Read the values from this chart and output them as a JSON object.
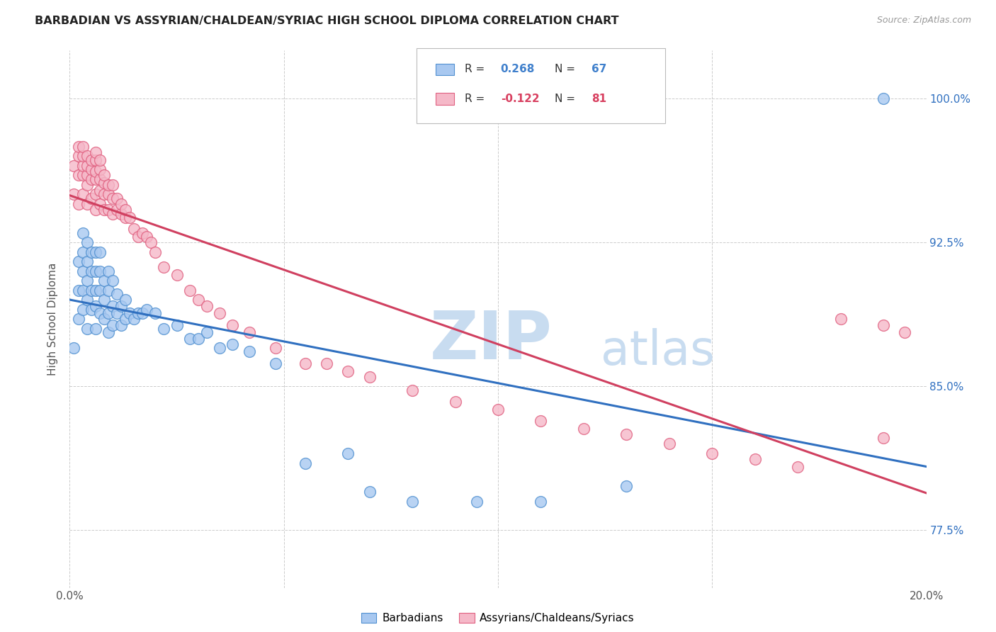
{
  "title": "BARBADIAN VS ASSYRIAN/CHALDEAN/SYRIAC HIGH SCHOOL DIPLOMA CORRELATION CHART",
  "source": "Source: ZipAtlas.com",
  "ylabel": "High School Diploma",
  "xlim": [
    0.0,
    0.2
  ],
  "ylim": [
    0.745,
    1.025
  ],
  "yticks": [
    0.775,
    0.85,
    0.925,
    1.0
  ],
  "yticklabels": [
    "77.5%",
    "85.0%",
    "92.5%",
    "100.0%"
  ],
  "blue_label": "Barbadians",
  "pink_label": "Assyrians/Chaldeans/Syriacs",
  "blue_color": "#A8C8F0",
  "pink_color": "#F5B8C8",
  "blue_edge_color": "#5090D0",
  "pink_edge_color": "#E06080",
  "blue_line_color": "#3070C0",
  "pink_line_color": "#D04060",
  "legend_R_blue": "#4080CC",
  "legend_R_pink": "#D84060",
  "background": "#FFFFFF",
  "grid_color": "#CCCCCC",
  "watermark_zip": "ZIP",
  "watermark_atlas": "atlas",
  "watermark_color_zip": "#C8DCF0",
  "watermark_color_atlas": "#C8DCF0",
  "blue_x": [
    0.001,
    0.002,
    0.002,
    0.002,
    0.003,
    0.003,
    0.003,
    0.003,
    0.003,
    0.004,
    0.004,
    0.004,
    0.004,
    0.004,
    0.005,
    0.005,
    0.005,
    0.005,
    0.006,
    0.006,
    0.006,
    0.006,
    0.006,
    0.007,
    0.007,
    0.007,
    0.007,
    0.008,
    0.008,
    0.008,
    0.009,
    0.009,
    0.009,
    0.009,
    0.01,
    0.01,
    0.01,
    0.011,
    0.011,
    0.012,
    0.012,
    0.013,
    0.013,
    0.014,
    0.015,
    0.016,
    0.017,
    0.018,
    0.02,
    0.022,
    0.025,
    0.028,
    0.03,
    0.032,
    0.035,
    0.038,
    0.042,
    0.048,
    0.055,
    0.065,
    0.07,
    0.08,
    0.095,
    0.11,
    0.13,
    0.19
  ],
  "blue_y": [
    0.87,
    0.885,
    0.9,
    0.915,
    0.89,
    0.9,
    0.91,
    0.92,
    0.93,
    0.88,
    0.895,
    0.905,
    0.915,
    0.925,
    0.89,
    0.9,
    0.91,
    0.92,
    0.88,
    0.892,
    0.9,
    0.91,
    0.92,
    0.888,
    0.9,
    0.91,
    0.92,
    0.885,
    0.895,
    0.905,
    0.878,
    0.888,
    0.9,
    0.91,
    0.882,
    0.892,
    0.905,
    0.888,
    0.898,
    0.882,
    0.892,
    0.885,
    0.895,
    0.888,
    0.885,
    0.888,
    0.888,
    0.89,
    0.888,
    0.88,
    0.882,
    0.875,
    0.875,
    0.878,
    0.87,
    0.872,
    0.868,
    0.862,
    0.81,
    0.815,
    0.795,
    0.79,
    0.79,
    0.79,
    0.798,
    1.0
  ],
  "pink_x": [
    0.001,
    0.001,
    0.002,
    0.002,
    0.002,
    0.002,
    0.003,
    0.003,
    0.003,
    0.003,
    0.003,
    0.004,
    0.004,
    0.004,
    0.004,
    0.004,
    0.005,
    0.005,
    0.005,
    0.005,
    0.006,
    0.006,
    0.006,
    0.006,
    0.006,
    0.006,
    0.007,
    0.007,
    0.007,
    0.007,
    0.007,
    0.008,
    0.008,
    0.008,
    0.008,
    0.009,
    0.009,
    0.009,
    0.01,
    0.01,
    0.01,
    0.011,
    0.011,
    0.012,
    0.012,
    0.013,
    0.013,
    0.014,
    0.015,
    0.016,
    0.017,
    0.018,
    0.019,
    0.02,
    0.022,
    0.025,
    0.028,
    0.03,
    0.032,
    0.035,
    0.038,
    0.042,
    0.048,
    0.055,
    0.06,
    0.065,
    0.07,
    0.08,
    0.09,
    0.1,
    0.11,
    0.12,
    0.13,
    0.14,
    0.15,
    0.16,
    0.17,
    0.18,
    0.19,
    0.195,
    0.19
  ],
  "pink_y": [
    0.95,
    0.965,
    0.945,
    0.96,
    0.97,
    0.975,
    0.95,
    0.96,
    0.965,
    0.97,
    0.975,
    0.945,
    0.955,
    0.96,
    0.965,
    0.97,
    0.948,
    0.958,
    0.963,
    0.968,
    0.942,
    0.95,
    0.958,
    0.962,
    0.968,
    0.972,
    0.945,
    0.952,
    0.958,
    0.963,
    0.968,
    0.942,
    0.95,
    0.956,
    0.96,
    0.942,
    0.95,
    0.955,
    0.94,
    0.948,
    0.955,
    0.942,
    0.948,
    0.94,
    0.945,
    0.938,
    0.942,
    0.938,
    0.932,
    0.928,
    0.93,
    0.928,
    0.925,
    0.92,
    0.912,
    0.908,
    0.9,
    0.895,
    0.892,
    0.888,
    0.882,
    0.878,
    0.87,
    0.862,
    0.862,
    0.858,
    0.855,
    0.848,
    0.842,
    0.838,
    0.832,
    0.828,
    0.825,
    0.82,
    0.815,
    0.812,
    0.808,
    0.885,
    0.882,
    0.878,
    0.823
  ]
}
